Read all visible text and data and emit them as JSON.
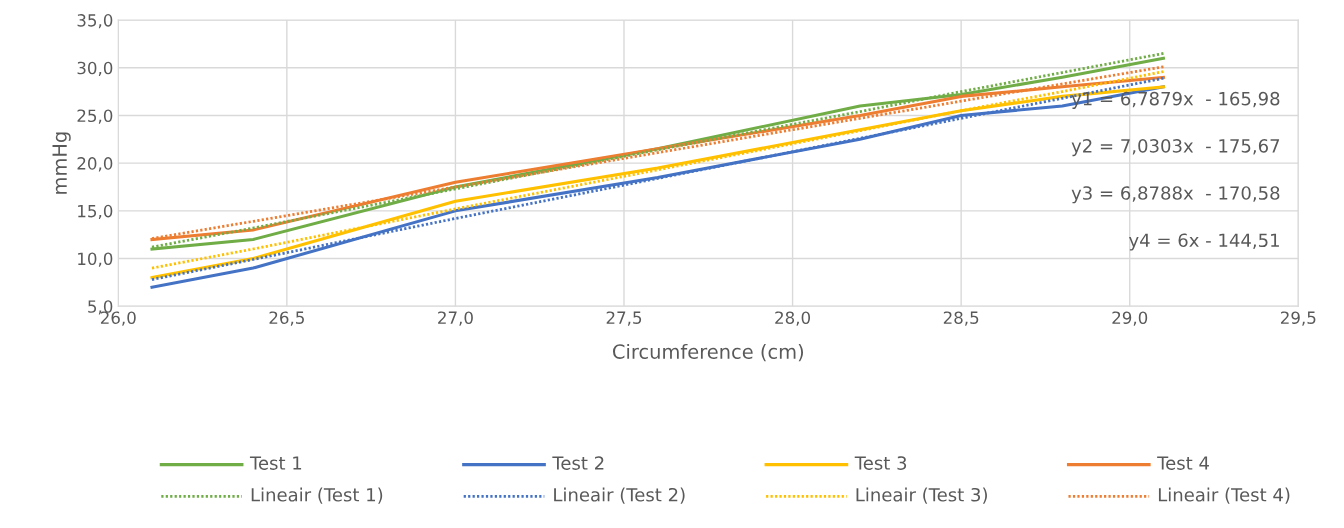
{
  "chart_data": {
    "type": "line",
    "xlabel": "Circumference (cm)",
    "ylabel": "mmHg",
    "x": [
      26.1,
      26.4,
      27.0,
      27.6,
      28.2,
      28.5,
      28.8,
      29.1
    ],
    "series": [
      {
        "name": "Test 1",
        "color": "#70ad47",
        "line_style": "solid",
        "values": [
          11.0,
          12.0,
          17.5,
          21.5,
          26.0,
          27.2,
          29.0,
          31.0
        ]
      },
      {
        "name": "Test 2",
        "color": "#4472c4",
        "line_style": "solid",
        "values": [
          7.0,
          9.0,
          15.0,
          18.5,
          22.5,
          25.0,
          26.0,
          28.0
        ]
      },
      {
        "name": "Test 3",
        "color": "#ffc000",
        "line_style": "solid",
        "values": [
          8.0,
          10.0,
          16.0,
          19.5,
          23.5,
          25.5,
          27.0,
          28.0
        ]
      },
      {
        "name": "Test 4",
        "color": "#ed7d31",
        "line_style": "solid",
        "values": [
          12.0,
          13.0,
          18.0,
          21.5,
          25.0,
          27.0,
          28.0,
          29.0
        ]
      },
      {
        "name": "Lineair (Test 1)",
        "color": "#70ad47",
        "line_style": "dotted",
        "values": [
          11.2,
          13.2,
          17.3,
          21.4,
          25.4,
          27.5,
          29.5,
          31.5
        ]
      },
      {
        "name": "Lineair (Test 2)",
        "color": "#4472c4",
        "line_style": "dotted",
        "values": [
          7.8,
          9.9,
          14.2,
          18.4,
          22.6,
          24.7,
          26.8,
          28.9
        ]
      },
      {
        "name": "Lineair (Test 3)",
        "color": "#ffc000",
        "line_style": "dotted",
        "values": [
          9.0,
          11.0,
          15.2,
          19.3,
          23.4,
          25.5,
          27.5,
          29.6
        ]
      },
      {
        "name": "Lineair (Test 4)",
        "color": "#ed7d31",
        "line_style": "dotted",
        "values": [
          12.1,
          13.9,
          17.5,
          21.1,
          24.7,
          26.5,
          28.3,
          30.1
        ]
      }
    ],
    "xlim": [
      26.0,
      29.5
    ],
    "xticks": [
      {
        "value": 26.0,
        "label": "26,0"
      },
      {
        "value": 26.5,
        "label": "26,5"
      },
      {
        "value": 27.0,
        "label": "27,0"
      },
      {
        "value": 27.5,
        "label": "27,5"
      },
      {
        "value": 28.0,
        "label": "28,0"
      },
      {
        "value": 28.5,
        "label": "28,5"
      },
      {
        "value": 29.0,
        "label": "29,0"
      },
      {
        "value": 29.5,
        "label": "29,5"
      }
    ],
    "ylim": [
      5,
      35
    ],
    "yticks": [
      {
        "value": 5,
        "label": "5,0"
      },
      {
        "value": 10,
        "label": "10,0"
      },
      {
        "value": 15,
        "label": "15,0"
      },
      {
        "value": 20,
        "label": "20,0"
      },
      {
        "value": 25,
        "label": "25,0"
      },
      {
        "value": 30,
        "label": "30,0"
      },
      {
        "value": 35,
        "label": "35,0"
      }
    ],
    "grid": true,
    "legend": "bottom",
    "marker": "none",
    "annotations": [
      "y1 = 6,7879x  - 165,98",
      "y2 = 7,0303x  - 175,67",
      "y3 = 6,8788x  - 170,58",
      "y4 = 6x - 144,51"
    ]
  }
}
